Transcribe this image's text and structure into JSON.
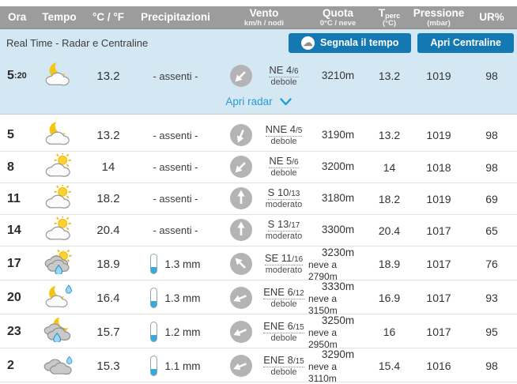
{
  "table": {
    "columns": [
      {
        "label": "Ora",
        "label_sub": "",
        "sub": ""
      },
      {
        "label": "Tempo",
        "label_sub": "",
        "sub": ""
      },
      {
        "label": "°C / °F",
        "label_sub": "",
        "sub": ""
      },
      {
        "label": "Precipitazioni",
        "label_sub": "",
        "sub": ""
      },
      {
        "label": "Vento",
        "label_sub": "",
        "sub": "km/h / nodi"
      },
      {
        "label": "Quota",
        "label_sub": "",
        "sub": "0°C / neve"
      },
      {
        "label": "T",
        "label_sub": "perc",
        "sub": "(°C)"
      },
      {
        "label": "Pressione",
        "label_sub": "",
        "sub": "(mbar)"
      },
      {
        "label": "UR%",
        "label_sub": "",
        "sub": ""
      }
    ]
  },
  "realtime": {
    "title": "Real Time - Radar e Centraline",
    "segnala_button": "Segnala il tempo",
    "centraline_button": "Apri Centraline",
    "radar_link": "Apri radar",
    "row": {
      "time": "5",
      "time_min": ":20",
      "icon": "moon-cloud",
      "temp": "13.2",
      "precip": {
        "label": "- assenti -",
        "mm": null
      },
      "wind": {
        "label": "NE 4",
        "knots": "/6",
        "strength": "debole",
        "deg": 225
      },
      "quota": "3210m",
      "quota_snow": "",
      "tperc": "13.2",
      "pressure": "1019",
      "humidity": "98"
    }
  },
  "rows": [
    {
      "time": "5",
      "time_min": "",
      "icon": "moon-cloud",
      "temp": "13.2",
      "precip": {
        "label": "- assenti -",
        "mm": null
      },
      "wind": {
        "label": "NNE 4",
        "knots": "/5",
        "strength": "debole",
        "deg": 202.5
      },
      "quota": "3190m",
      "quota_snow": "",
      "tperc": "13.2",
      "pressure": "1019",
      "humidity": "98"
    },
    {
      "time": "8",
      "time_min": "",
      "icon": "sun-cloud",
      "temp": "14",
      "precip": {
        "label": "- assenti -",
        "mm": null
      },
      "wind": {
        "label": "NE 5",
        "knots": "/6",
        "strength": "debole",
        "deg": 225
      },
      "quota": "3200m",
      "quota_snow": "",
      "tperc": "14",
      "pressure": "1018",
      "humidity": "98"
    },
    {
      "time": "11",
      "time_min": "",
      "icon": "sun-cloud",
      "temp": "18.2",
      "precip": {
        "label": "- assenti -",
        "mm": null
      },
      "wind": {
        "label": "S 10",
        "knots": "/13",
        "strength": "moderato",
        "deg": 0
      },
      "quota": "3180m",
      "quota_snow": "",
      "tperc": "18.2",
      "pressure": "1019",
      "humidity": "69"
    },
    {
      "time": "14",
      "time_min": "",
      "icon": "sun-cloud",
      "temp": "20.4",
      "precip": {
        "label": "- assenti -",
        "mm": null
      },
      "wind": {
        "label": "S 13",
        "knots": "/17",
        "strength": "moderato",
        "deg": 0
      },
      "quota": "3300m",
      "quota_snow": "",
      "tperc": "20.4",
      "pressure": "1017",
      "humidity": "65"
    },
    {
      "time": "17",
      "time_min": "",
      "icon": "sun-cloud-rain",
      "temp": "18.9",
      "precip": {
        "label": null,
        "mm": "1.3 mm"
      },
      "wind": {
        "label": "SE 11",
        "knots": "/16",
        "strength": "moderato",
        "deg": 315
      },
      "quota": "3230m",
      "quota_snow": "neve a 2790m",
      "tperc": "18.9",
      "pressure": "1017",
      "humidity": "76"
    },
    {
      "time": "20",
      "time_min": "",
      "icon": "moon-drizzle",
      "temp": "16.4",
      "precip": {
        "label": null,
        "mm": "1.3 mm"
      },
      "wind": {
        "label": "ENE 6",
        "knots": "/12",
        "strength": "debole",
        "deg": 247.5
      },
      "quota": "3330m",
      "quota_snow": "neve a 3150m",
      "tperc": "16.9",
      "pressure": "1017",
      "humidity": "93"
    },
    {
      "time": "23",
      "time_min": "",
      "icon": "moon-cloud-rain",
      "temp": "15.7",
      "precip": {
        "label": null,
        "mm": "1.2 mm"
      },
      "wind": {
        "label": "ENE 6",
        "knots": "/15",
        "strength": "debole",
        "deg": 247.5
      },
      "quota": "3250m",
      "quota_snow": "neve a 2950m",
      "tperc": "16",
      "pressure": "1017",
      "humidity": "95"
    },
    {
      "time": "2",
      "time_min": "",
      "icon": "cloud-drizzle",
      "temp": "15.3",
      "precip": {
        "label": null,
        "mm": "1.1 mm"
      },
      "wind": {
        "label": "ENE 8",
        "knots": "/15",
        "strength": "debole",
        "deg": 247.5
      },
      "quota": "3290m",
      "quota_snow": "neve a 3110m",
      "tperc": "15.4",
      "pressure": "1016",
      "humidity": "98"
    }
  ],
  "colors": {
    "header_gray": "#9c9c9c",
    "light_blue_bg": "#d4e8f4",
    "button_blue": "#1478b3",
    "link_blue": "#2a9bd6",
    "rain_blue": "#35aade"
  }
}
